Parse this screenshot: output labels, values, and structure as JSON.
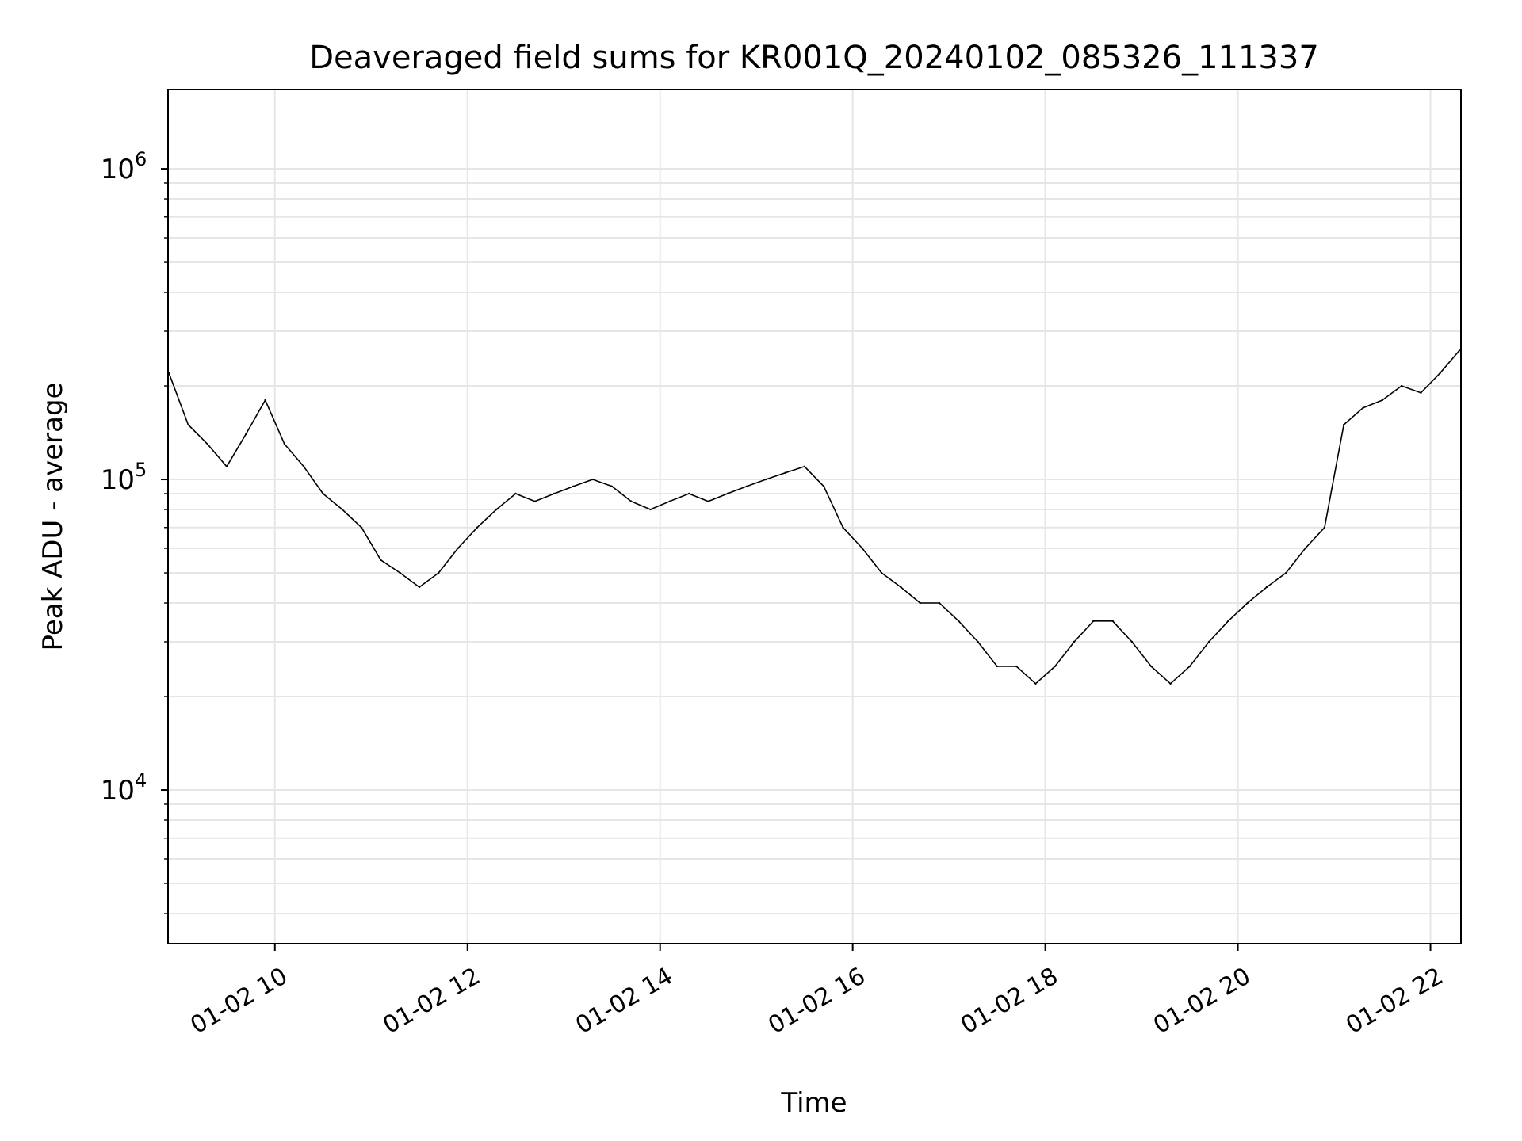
{
  "chart_data": {
    "type": "line",
    "title": "Deaveraged field sums for KR001Q_20240102_085326_111337",
    "xlabel": "Time",
    "ylabel": "Peak ADU - average",
    "yscale": "log",
    "ylim": [
      3200,
      1800000
    ],
    "xlim": [
      "2024-01-02 08:53:26",
      "2024-01-02 22:19:00"
    ],
    "x_ticks": [
      "2024-01-02 10:00",
      "2024-01-02 12:00",
      "2024-01-02 14:00",
      "2024-01-02 16:00",
      "2024-01-02 18:00",
      "2024-01-02 20:00",
      "2024-01-02 22:00"
    ],
    "x_tick_labels": [
      "01-02 10",
      "01-02 12",
      "01-02 14",
      "01-02 16",
      "01-02 18",
      "01-02 20",
      "01-02 22"
    ],
    "y_tick_labels": [
      {
        "value": 10000,
        "base": "10",
        "exp": "4"
      },
      {
        "value": 100000,
        "base": "10",
        "exp": "5"
      },
      {
        "value": 1000000,
        "base": "10",
        "exp": "6"
      }
    ],
    "grid": true,
    "line_color": "#000000",
    "grid_color": "#e6e6e6",
    "series": [
      {
        "x": [
          "2024-01-02 08:54",
          "2024-01-02 09:06",
          "2024-01-02 09:18",
          "2024-01-02 09:30",
          "2024-01-02 09:42",
          "2024-01-02 09:54",
          "2024-01-02 10:06",
          "2024-01-02 10:18",
          "2024-01-02 10:30",
          "2024-01-02 10:42",
          "2024-01-02 10:54",
          "2024-01-02 11:06",
          "2024-01-02 11:18",
          "2024-01-02 11:30",
          "2024-01-02 11:42",
          "2024-01-02 11:54",
          "2024-01-02 12:06",
          "2024-01-02 12:18",
          "2024-01-02 12:30",
          "2024-01-02 12:42",
          "2024-01-02 12:54",
          "2024-01-02 13:06",
          "2024-01-02 13:18",
          "2024-01-02 13:30",
          "2024-01-02 13:42",
          "2024-01-02 13:54",
          "2024-01-02 14:06",
          "2024-01-02 14:18",
          "2024-01-02 14:30",
          "2024-01-02 14:42",
          "2024-01-02 14:54",
          "2024-01-02 15:06",
          "2024-01-02 15:18",
          "2024-01-02 15:30",
          "2024-01-02 15:42",
          "2024-01-02 15:54",
          "2024-01-02 16:06",
          "2024-01-02 16:18",
          "2024-01-02 16:30",
          "2024-01-02 16:42",
          "2024-01-02 16:54",
          "2024-01-02 17:06",
          "2024-01-02 17:18",
          "2024-01-02 17:30",
          "2024-01-02 17:42",
          "2024-01-02 17:54",
          "2024-01-02 18:06",
          "2024-01-02 18:18",
          "2024-01-02 18:30",
          "2024-01-02 18:42",
          "2024-01-02 18:54",
          "2024-01-02 19:06",
          "2024-01-02 19:18",
          "2024-01-02 19:30",
          "2024-01-02 19:42",
          "2024-01-02 19:54",
          "2024-01-02 20:06",
          "2024-01-02 20:18",
          "2024-01-02 20:30",
          "2024-01-02 20:42",
          "2024-01-02 20:54",
          "2024-01-02 21:06",
          "2024-01-02 21:18",
          "2024-01-02 21:30",
          "2024-01-02 21:42",
          "2024-01-02 21:54",
          "2024-01-02 22:06",
          "2024-01-02 22:18"
        ],
        "y": [
          220000,
          150000,
          130000,
          110000,
          140000,
          180000,
          130000,
          110000,
          90000,
          80000,
          70000,
          55000,
          50000,
          45000,
          50000,
          60000,
          70000,
          80000,
          90000,
          85000,
          90000,
          95000,
          100000,
          95000,
          85000,
          80000,
          85000,
          90000,
          85000,
          90000,
          95000,
          100000,
          105000,
          110000,
          95000,
          70000,
          60000,
          50000,
          45000,
          40000,
          40000,
          35000,
          30000,
          25000,
          25000,
          22000,
          25000,
          30000,
          35000,
          35000,
          30000,
          25000,
          22000,
          25000,
          30000,
          35000,
          40000,
          45000,
          50000,
          60000,
          70000,
          150000,
          170000,
          180000,
          200000,
          190000,
          220000,
          260000
        ]
      }
    ]
  }
}
